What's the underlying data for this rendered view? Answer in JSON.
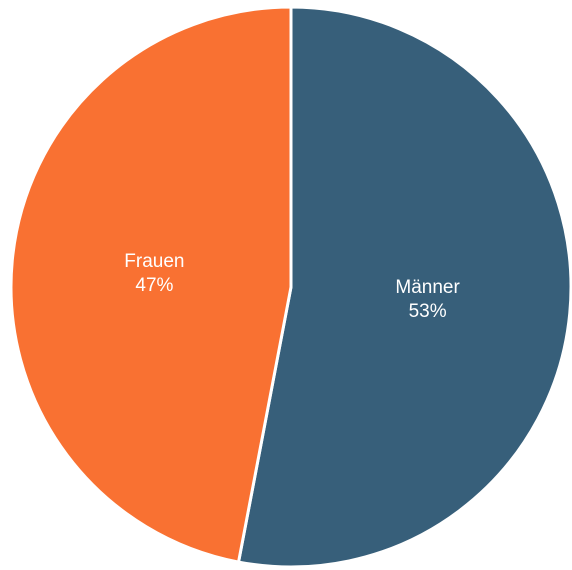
{
  "chart_data": {
    "type": "pie",
    "categories": [
      "Männer",
      "Frauen"
    ],
    "values": [
      53,
      47
    ],
    "value_labels": [
      "53%",
      "47%"
    ],
    "colors": [
      "#375f7a",
      "#f97132"
    ]
  }
}
